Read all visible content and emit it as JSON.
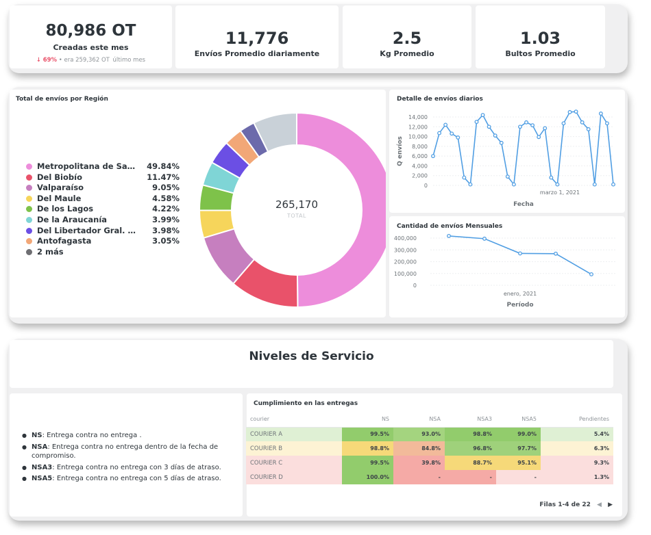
{
  "kpis": [
    {
      "value": "80,986 OT",
      "label": "Creadas este mes",
      "change_pct": "69%",
      "change_text": "era 259,362 OT",
      "change_period": "último mes"
    },
    {
      "value": "11,776",
      "label": "Envíos Promedio diariamente"
    },
    {
      "value": "2.5",
      "label": "Kg Promedio"
    },
    {
      "value": "1.03",
      "label": "Bultos Promedio"
    }
  ],
  "region_card": {
    "title": "Total de envíos por Región",
    "center_value": "265,170",
    "center_label": "TOTAL",
    "legend": [
      {
        "name": "Metropolitana de Santiago",
        "pct": "49.84%",
        "color": "#ed8ddb"
      },
      {
        "name": "Del Biobío",
        "pct": "11.47%",
        "color": "#e9526a"
      },
      {
        "name": "Valparaíso",
        "pct": "9.05%",
        "color": "#c67fbf"
      },
      {
        "name": "Del Maule",
        "pct": "4.58%",
        "color": "#f6d55b"
      },
      {
        "name": "De los Lagos",
        "pct": "4.22%",
        "color": "#7ec24a"
      },
      {
        "name": "De la Araucanía",
        "pct": "3.99%",
        "color": "#7fd5d6"
      },
      {
        "name": "Del Libertador Gral. Bernardo O'Higgins",
        "pct": "3.98%",
        "color": "#6b4fe4"
      },
      {
        "name": "Antofagasta",
        "pct": "3.05%",
        "color": "#f2a777"
      },
      {
        "name": "2 más",
        "pct": "",
        "color": "#6e6e72"
      }
    ],
    "donut_slices": [
      {
        "value": 49.84,
        "color": "#ed8ddb"
      },
      {
        "value": 11.47,
        "color": "#e9526a"
      },
      {
        "value": 9.05,
        "color": "#c67fbf"
      },
      {
        "value": 4.58,
        "color": "#f6d55b"
      },
      {
        "value": 4.22,
        "color": "#7ec24a"
      },
      {
        "value": 3.99,
        "color": "#7fd5d6"
      },
      {
        "value": 3.98,
        "color": "#6b4fe4"
      },
      {
        "value": 3.05,
        "color": "#f2a777"
      },
      {
        "value": 2.55,
        "color": "#6c6aab"
      },
      {
        "value": 7.27,
        "color": "#c9d1d8"
      }
    ]
  },
  "daily_card": {
    "title": "Detalle de envíos diarios",
    "ylabel": "Q envíos",
    "xlabel": "Fecha",
    "x_tick": "marzo 1, 2021",
    "y_ticks": [
      "14,000",
      "12,000",
      "10,000",
      "8,000",
      "6,000",
      "4,000",
      "2,000",
      "0"
    ]
  },
  "monthly_card": {
    "title": "Cantidad de envíos Mensuales",
    "xlabel": "Período",
    "x_tick": "enero, 2021",
    "y_ticks": [
      "400,000",
      "300,000",
      "200,000",
      "100,000",
      "0"
    ]
  },
  "chart_data": [
    {
      "type": "line",
      "title": "Detalle de envíos diarios",
      "xlabel": "Fecha",
      "ylabel": "Q envíos",
      "ylim": [
        0,
        15000
      ],
      "values": [
        6000,
        10700,
        12400,
        10600,
        9800,
        1600,
        200,
        13000,
        14400,
        12000,
        10200,
        8700,
        1800,
        200,
        12000,
        12900,
        12300,
        9900,
        11700,
        1600,
        200,
        12700,
        15000,
        15100,
        12900,
        11500,
        200,
        14700,
        12700,
        200
      ]
    },
    {
      "type": "line",
      "title": "Cantidad de envíos Mensuales",
      "xlabel": "Período",
      "ylim": [
        0,
        450000
      ],
      "values": [
        418000,
        395000,
        270000,
        268000,
        93000
      ]
    }
  ],
  "section_title": "Niveles de Servicio",
  "definitions": [
    {
      "term": "NS",
      "text": ": Entrega contra no entrega ."
    },
    {
      "term": "NSA",
      "text": ": Entrega contra no entrega dentro de la fecha de compromiso."
    },
    {
      "term": "NSA3",
      "text": ": Entrega contra no entrega con 3 días de atraso."
    },
    {
      "term": "NSA5",
      "text": ": Entrega contra no entrega con 5 días de atraso."
    }
  ],
  "sla_table": {
    "title": "Cumplimiento en las entregas",
    "headers": [
      "courier",
      "NS",
      "NSA",
      "NSA3",
      "NSA5",
      "Pendientes"
    ],
    "rows": [
      {
        "cells": [
          "COURIER A",
          "99.5%",
          "93.0%",
          "98.8%",
          "99.0%",
          "5.4%"
        ],
        "colors": [
          "#dff0d4",
          "#92cc6c",
          "#a4d47f",
          "#92cc6c",
          "#92cc6c",
          "#dff0d4"
        ]
      },
      {
        "cells": [
          "COURIER B",
          "98.8%",
          "84.8%",
          "96.8%",
          "97.7%",
          "6.3%"
        ],
        "colors": [
          "#fdf3d4",
          "#f6d979",
          "#f2ba9a",
          "#9fd17b",
          "#9fd17b",
          "#fdf3d4"
        ]
      },
      {
        "cells": [
          "COURIER C",
          "99.5%",
          "39.8%",
          "88.7%",
          "95.1%",
          "9.3%"
        ],
        "colors": [
          "#fbdedd",
          "#92cc6c",
          "#f5aaa6",
          "#f6d979",
          "#f6d979",
          "#fbdedd"
        ]
      },
      {
        "cells": [
          "COURIER D",
          "100.0%",
          "-",
          "-",
          "-",
          "1.3%"
        ],
        "colors": [
          "#fbdedd",
          "#92cc6c",
          "#f5aaa6",
          "#f5aaa6",
          "#fbdedd",
          "#fbdedd"
        ]
      }
    ],
    "pagination": "Filas 1-4 de 22"
  }
}
